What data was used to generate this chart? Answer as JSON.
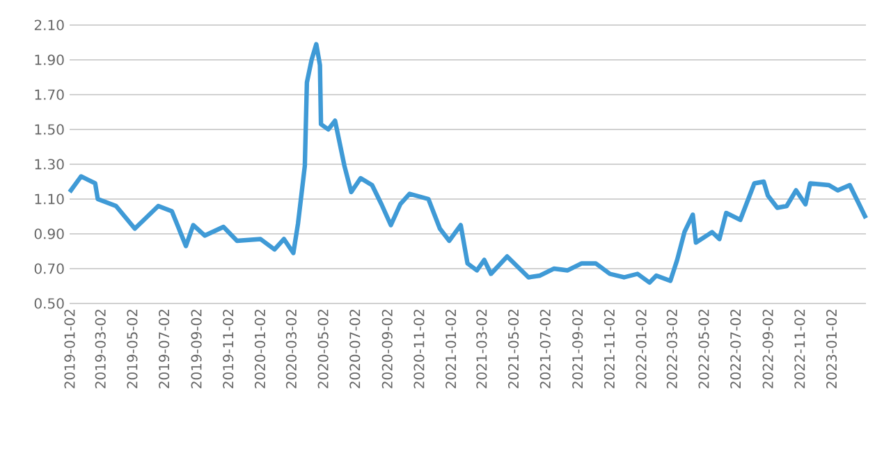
{
  "chart_data": {
    "type": "line",
    "color": "#3f9ad6",
    "grid": "y",
    "marker": "none",
    "line_style": "solid",
    "x": [
      "2019-01-02",
      "2019-01-24",
      "2019-02-20",
      "2019-02-25",
      "2019-04-01",
      "2019-05-07",
      "2019-06-21",
      "2019-07-17",
      "2019-08-13",
      "2019-08-27",
      "2019-09-18",
      "2019-10-24",
      "2019-11-19",
      "2020-01-03",
      "2020-01-30",
      "2020-02-17",
      "2020-03-06",
      "2020-03-15",
      "2020-03-28",
      "2020-04-01",
      "2020-04-10",
      "2020-04-19",
      "2020-04-26",
      "2020-04-28",
      "2020-05-12",
      "2020-05-25",
      "2020-06-12",
      "2020-06-25",
      "2020-07-13",
      "2020-08-04",
      "2020-08-22",
      "2020-09-09",
      "2020-09-27",
      "2020-10-15",
      "2020-11-20",
      "2020-12-12",
      "2020-12-30",
      "2021-01-21",
      "2021-02-03",
      "2021-02-21",
      "2021-03-07",
      "2021-03-20",
      "2021-04-20",
      "2021-05-31",
      "2021-06-22",
      "2021-07-19",
      "2021-08-14",
      "2021-09-10",
      "2021-10-07",
      "2021-11-03",
      "2021-11-30",
      "2021-12-26",
      "2022-01-18",
      "2022-01-31",
      "2022-02-27",
      "2022-03-12",
      "2022-03-26",
      "2022-04-11",
      "2022-04-17",
      "2022-05-18",
      "2022-06-01",
      "2022-06-14",
      "2022-07-11",
      "2022-08-07",
      "2022-08-25",
      "2022-09-02",
      "2022-09-20",
      "2022-10-08",
      "2022-10-26",
      "2022-11-13",
      "2022-11-22",
      "2022-12-28",
      "2023-01-14",
      "2023-02-06",
      "2023-02-24",
      "2023-03-09"
    ],
    "values": [
      1.14,
      1.23,
      1.19,
      1.1,
      1.06,
      0.93,
      1.06,
      1.03,
      0.83,
      0.95,
      0.89,
      0.94,
      0.86,
      0.87,
      0.81,
      0.87,
      0.79,
      0.96,
      1.29,
      1.77,
      1.9,
      1.99,
      1.87,
      1.53,
      1.5,
      1.55,
      1.29,
      1.14,
      1.22,
      1.18,
      1.07,
      0.95,
      1.07,
      1.13,
      1.1,
      0.93,
      0.86,
      0.95,
      0.73,
      0.69,
      0.75,
      0.67,
      0.77,
      0.65,
      0.66,
      0.7,
      0.69,
      0.73,
      0.73,
      0.67,
      0.65,
      0.67,
      0.62,
      0.66,
      0.63,
      0.75,
      0.91,
      1.01,
      0.85,
      0.91,
      0.87,
      1.02,
      0.98,
      1.19,
      1.2,
      1.12,
      1.05,
      1.06,
      1.15,
      1.07,
      1.19,
      1.18,
      1.15,
      1.18,
      1.07,
      0.99
    ],
    "xlim": [
      "2019-01-02",
      "2023-03-09"
    ],
    "ylim": [
      0.5,
      2.1
    ],
    "yticks": [
      {
        "value": 0.5,
        "label": "0.50"
      },
      {
        "value": 0.7,
        "label": "0.70"
      },
      {
        "value": 0.9,
        "label": "0.90"
      },
      {
        "value": 1.1,
        "label": "1.10"
      },
      {
        "value": 1.3,
        "label": "1.30"
      },
      {
        "value": 1.5,
        "label": "1.50"
      },
      {
        "value": 1.7,
        "label": "1.70"
      },
      {
        "value": 1.9,
        "label": "1.90"
      },
      {
        "value": 2.1,
        "label": "2.10"
      }
    ],
    "xticks": [
      {
        "value": "2019-01-02",
        "label": "2019-01-02"
      },
      {
        "value": "2019-03-02",
        "label": "2019-03-02"
      },
      {
        "value": "2019-05-02",
        "label": "2019-05-02"
      },
      {
        "value": "2019-07-02",
        "label": "2019-07-02"
      },
      {
        "value": "2019-09-02",
        "label": "2019-09-02"
      },
      {
        "value": "2019-11-02",
        "label": "2019-11-02"
      },
      {
        "value": "2020-01-02",
        "label": "2020-01-02"
      },
      {
        "value": "2020-03-02",
        "label": "2020-03-02"
      },
      {
        "value": "2020-05-02",
        "label": "2020-05-02"
      },
      {
        "value": "2020-07-02",
        "label": "2020-07-02"
      },
      {
        "value": "2020-09-02",
        "label": "2020-09-02"
      },
      {
        "value": "2020-11-02",
        "label": "2020-11-02"
      },
      {
        "value": "2021-01-02",
        "label": "2021-01-02"
      },
      {
        "value": "2021-03-02",
        "label": "2021-03-02"
      },
      {
        "value": "2021-05-02",
        "label": "2021-05-02"
      },
      {
        "value": "2021-07-02",
        "label": "2021-07-02"
      },
      {
        "value": "2021-09-02",
        "label": "2021-09-02"
      },
      {
        "value": "2021-11-02",
        "label": "2021-11-02"
      },
      {
        "value": "2022-01-02",
        "label": "2022-01-02"
      },
      {
        "value": "2022-03-02",
        "label": "2022-03-02"
      },
      {
        "value": "2022-05-02",
        "label": "2022-05-02"
      },
      {
        "value": "2022-07-02",
        "label": "2022-07-02"
      },
      {
        "value": "2022-09-02",
        "label": "2022-09-02"
      },
      {
        "value": "2022-11-02",
        "label": "2022-11-02"
      },
      {
        "value": "2023-01-02",
        "label": "2023-01-02"
      }
    ]
  }
}
